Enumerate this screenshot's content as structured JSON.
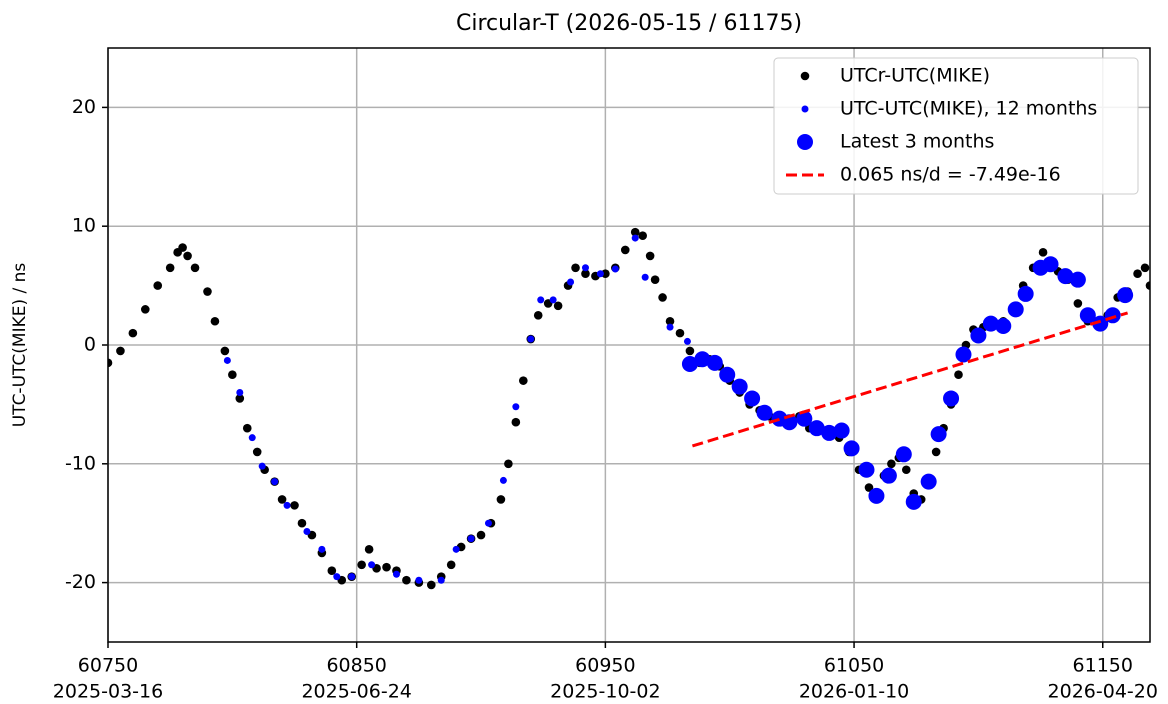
{
  "chart_data": {
    "type": "scatter",
    "title": "Circular-T  (2026-05-15 / 61175)",
    "y_label": "UTC-UTC(MIKE) / ns",
    "xlim": [
      60750,
      61169
    ],
    "ylim": [
      -25,
      25
    ],
    "xticks": [
      60750,
      60850,
      60950,
      61050,
      61150
    ],
    "xtick_dates": [
      "2025-03-16",
      "2025-06-24",
      "2025-10-02",
      "2026-01-10",
      "2026-04-20"
    ],
    "yticks": [
      -20,
      -10,
      0,
      10,
      20
    ],
    "grid": true,
    "legend": "upper right",
    "series": [
      {
        "name": "UTCr-UTC(MIKE)",
        "color": "#000000",
        "marker": "medium",
        "x": [
          60750,
          60755,
          60760,
          60765,
          60770,
          60775,
          60778,
          60780,
          60782,
          60785,
          60790,
          60793,
          60797,
          60800,
          60803,
          60806,
          60810,
          60813,
          60817,
          60820,
          60825,
          60828,
          60832,
          60836,
          60840,
          60844,
          60848,
          60852,
          60855,
          60858,
          60862,
          60866,
          60870,
          60875,
          60880,
          60884,
          60888,
          60892,
          60896,
          60900,
          60904,
          60908,
          60911,
          60914,
          60917,
          60920,
          60923,
          60927,
          60931,
          60935,
          60938,
          60942,
          60946,
          60950,
          60954,
          60958,
          60962,
          60965,
          60968,
          60970,
          60973,
          60976,
          60980,
          60984,
          60988,
          60992,
          60996,
          61000,
          61004,
          61008,
          61012,
          61016,
          61020,
          61024,
          61028,
          61032,
          61036,
          61040,
          61044,
          61048,
          61052,
          61056,
          61059,
          61062,
          61065,
          61068,
          61071,
          61074,
          61077,
          61080,
          61083,
          61086,
          61089,
          61092,
          61095,
          61098,
          61102,
          61106,
          61110,
          61114,
          61118,
          61122,
          61126,
          61129,
          61132,
          61136,
          61140,
          61144,
          61148,
          61152,
          61156,
          61160,
          61164,
          61167,
          61169
        ],
        "values": [
          -1.5,
          -0.5,
          1,
          3,
          5,
          6.5,
          7.8,
          8.2,
          7.5,
          6.5,
          4.5,
          2,
          -0.5,
          -2.5,
          -4.5,
          -7,
          -9,
          -10.5,
          -11.5,
          -13,
          -13.5,
          -15,
          -16,
          -17.5,
          -19,
          -19.8,
          -19.5,
          -18.5,
          -17.2,
          -18.8,
          -18.7,
          -19,
          -19.8,
          -20,
          -20.2,
          -19.5,
          -18.5,
          -17,
          -16.3,
          -16,
          -15,
          -13,
          -10,
          -6.5,
          -3,
          0.5,
          2.5,
          3.5,
          3.3,
          5,
          6.5,
          6,
          5.8,
          6,
          6.5,
          8,
          9.5,
          9.2,
          7.5,
          5.5,
          4,
          2,
          1,
          -0.5,
          -1.5,
          -1.2,
          -1.8,
          -3,
          -4,
          -5,
          -5.5,
          -6,
          -6,
          -6.5,
          -6,
          -7,
          -7.2,
          -7.3,
          -7.8,
          -9,
          -10.5,
          -12,
          -12.5,
          -11,
          -10,
          -9.5,
          -10.5,
          -12.5,
          -13,
          -11.5,
          -9,
          -7,
          -5,
          -2.5,
          0,
          1.3,
          1.5,
          2,
          2,
          3,
          5,
          6.5,
          7.8,
          7,
          6.2,
          5.5,
          3.5,
          2,
          2,
          2.5,
          4,
          4.5,
          6,
          6.5,
          5
        ]
      },
      {
        "name": "UTC-UTC(MIKE), 12 months",
        "color": "#0000ff",
        "marker": "small",
        "x": [
          60798,
          60803,
          60808,
          60812,
          60817,
          60822,
          60830,
          60836,
          60842,
          60848,
          60856,
          60866,
          60875,
          60884,
          60890,
          60896,
          60903,
          60909,
          60914,
          60920,
          60924,
          60929,
          60936,
          60942,
          60948,
          60954,
          60962,
          60966,
          60976,
          60983
        ],
        "values": [
          -1.3,
          -4,
          -7.8,
          -10.2,
          -11.5,
          -13.5,
          -15.7,
          -17.2,
          -19.5,
          -19.5,
          -18.5,
          -19.3,
          -19.8,
          -19.8,
          -17.2,
          -16.3,
          -15,
          -11.4,
          -5.2,
          0.5,
          3.8,
          3.8,
          5.3,
          6.5,
          6,
          6.4,
          9,
          5.7,
          1.5,
          0.3
        ]
      },
      {
        "name": "Latest 3 months",
        "color": "#0000ff",
        "marker": "large",
        "x": [
          60984,
          60989,
          60994,
          60999,
          61004,
          61009,
          61014,
          61020,
          61024,
          61030,
          61035,
          61040,
          61045,
          61049,
          61055,
          61059,
          61064,
          61070,
          61074,
          61080,
          61084,
          61089,
          61094,
          61100,
          61105,
          61110,
          61115,
          61119,
          61125,
          61129,
          61135,
          61140,
          61144,
          61149,
          61154,
          61159
        ],
        "values": [
          -1.6,
          -1.2,
          -1.5,
          -2.5,
          -3.5,
          -4.5,
          -5.7,
          -6.2,
          -6.5,
          -6.2,
          -7,
          -7.4,
          -7.2,
          -8.7,
          -10.5,
          -12.7,
          -11,
          -9.2,
          -13.2,
          -11.5,
          -7.5,
          -4.5,
          -0.8,
          0.8,
          1.8,
          1.6,
          3,
          4.3,
          6.5,
          6.8,
          5.8,
          5.5,
          2.5,
          1.8,
          2.5,
          4.2
        ]
      },
      {
        "name": "0.065 ns/d = -7.49e-16",
        "color": "#ff0000",
        "marker": "dashed",
        "x": [
          60985,
          61160
        ],
        "values": [
          -8.5,
          2.7
        ]
      }
    ]
  }
}
